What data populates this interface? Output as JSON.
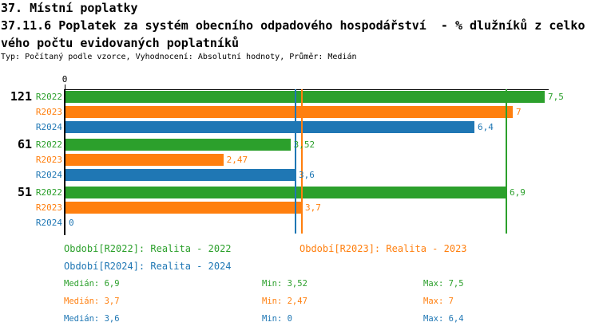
{
  "header": {
    "line1": "37. Místní poplatky",
    "line2": "37.11.6 Poplatek za systém obecního odpadového hospodářství  - % dlužníků z celko",
    "line3": "vého počtu evidovaných poplatníků",
    "line4": "Typ: Počítaný podle vzorce, Vyhodnocení: Absolutní hodnoty, Průměr: Medián"
  },
  "colors": {
    "green": "#2ca02c",
    "orange": "#ff7f0e",
    "blue": "#1f77b4",
    "axis": "#000000"
  },
  "chart_data": {
    "type": "bar",
    "orientation": "horizontal",
    "title": "",
    "xlabel": "",
    "ylabel": "",
    "xlim": [
      0,
      7.5625
    ],
    "origin_tick_label": "0",
    "grid": false,
    "categories": [
      "121",
      "61",
      "51"
    ],
    "series": [
      {
        "name": "R2022",
        "color_key": "green",
        "values": [
          7.5,
          3.52,
          6.9
        ],
        "value_labels": [
          "7,5",
          "3,52",
          "6,9"
        ],
        "median": 6.9
      },
      {
        "name": "R2023",
        "color_key": "orange",
        "values": [
          7.0,
          2.47,
          3.7
        ],
        "value_labels": [
          "7",
          "2,47",
          "3,7"
        ],
        "median": 3.7
      },
      {
        "name": "R2024",
        "color_key": "blue",
        "values": [
          6.4,
          3.6,
          0
        ],
        "value_labels": [
          "6,4",
          "3,6",
          "0"
        ],
        "median": 3.6
      }
    ],
    "median_lines_shown": true,
    "legend_position": "bottom"
  },
  "legend": [
    {
      "label": "Období[R2022]: Realita - 2022",
      "color_key": "green"
    },
    {
      "label": "Období[R2023]: Realita - 2023",
      "color_key": "orange"
    },
    {
      "label": "Období[R2024]: Realita - 2024",
      "color_key": "blue"
    }
  ],
  "stats": [
    {
      "color_key": "green",
      "median": "Medián: 6,9",
      "min": "Min: 3,52",
      "max": "Max: 7,5"
    },
    {
      "color_key": "orange",
      "median": "Medián: 3,7",
      "min": "Min: 2,47",
      "max": "Max: 7"
    },
    {
      "color_key": "blue",
      "median": "Medián: 3,6",
      "min": "Min: 0",
      "max": "Max: 6,4"
    }
  ]
}
